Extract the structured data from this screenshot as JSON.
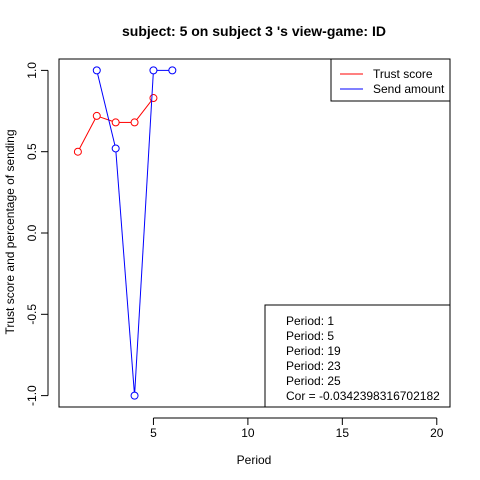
{
  "chart_data": {
    "type": "line",
    "title": "subject:  5  on subject  3 's view-game:  ID",
    "xlabel": "Period",
    "ylabel": "Trust score and percentage of sending",
    "xlim": [
      0,
      20.7
    ],
    "ylim": [
      -1.07,
      1.07
    ],
    "xticks": [
      5,
      10,
      15,
      20
    ],
    "yticks": [
      -1.0,
      -0.5,
      0.0,
      0.5,
      1.0
    ],
    "ytick_labels": [
      "-1.0",
      "-0.5",
      "0.0",
      "0.5",
      "1.0"
    ],
    "grid": false,
    "series": [
      {
        "name": "Trust score",
        "color": "#ff0000",
        "x": [
          1,
          2,
          3,
          4,
          5
        ],
        "y": [
          0.5,
          0.72,
          0.68,
          0.68,
          0.83
        ]
      },
      {
        "name": "Send amount",
        "color": "#0000ff",
        "x": [
          2,
          3,
          4,
          5,
          6
        ],
        "y": [
          1.0,
          0.52,
          -1.0,
          1.0,
          1.0
        ]
      }
    ],
    "legend_position": "top-right",
    "annotation": {
      "position": "bottom-right",
      "lines": [
        "Period:  1",
        "Period:  5",
        "Period:  19",
        "Period:  23",
        "Period:  25",
        "Cor =  -0.0342398316702182"
      ]
    }
  }
}
